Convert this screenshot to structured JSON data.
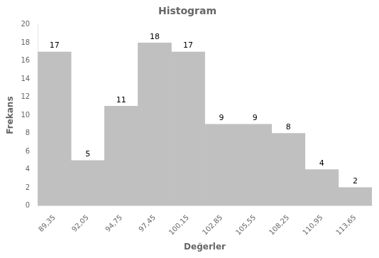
{
  "chart_data": {
    "type": "bar",
    "title": "Histogram",
    "xlabel": "Değerler",
    "ylabel": "Frekans",
    "categories": [
      "89,35",
      "92,05",
      "94,75",
      "97,45",
      "100,15",
      "102,85",
      "105,55",
      "108,25",
      "110,95",
      "113,65"
    ],
    "values": [
      17,
      5,
      11,
      18,
      17,
      9,
      9,
      8,
      4,
      2
    ],
    "color": "#c0c0c0",
    "ylim": [
      0,
      20
    ],
    "yticks": [
      0,
      2,
      4,
      6,
      8,
      10,
      12,
      14,
      16,
      18,
      20
    ],
    "data_labels": true,
    "grid": false
  }
}
